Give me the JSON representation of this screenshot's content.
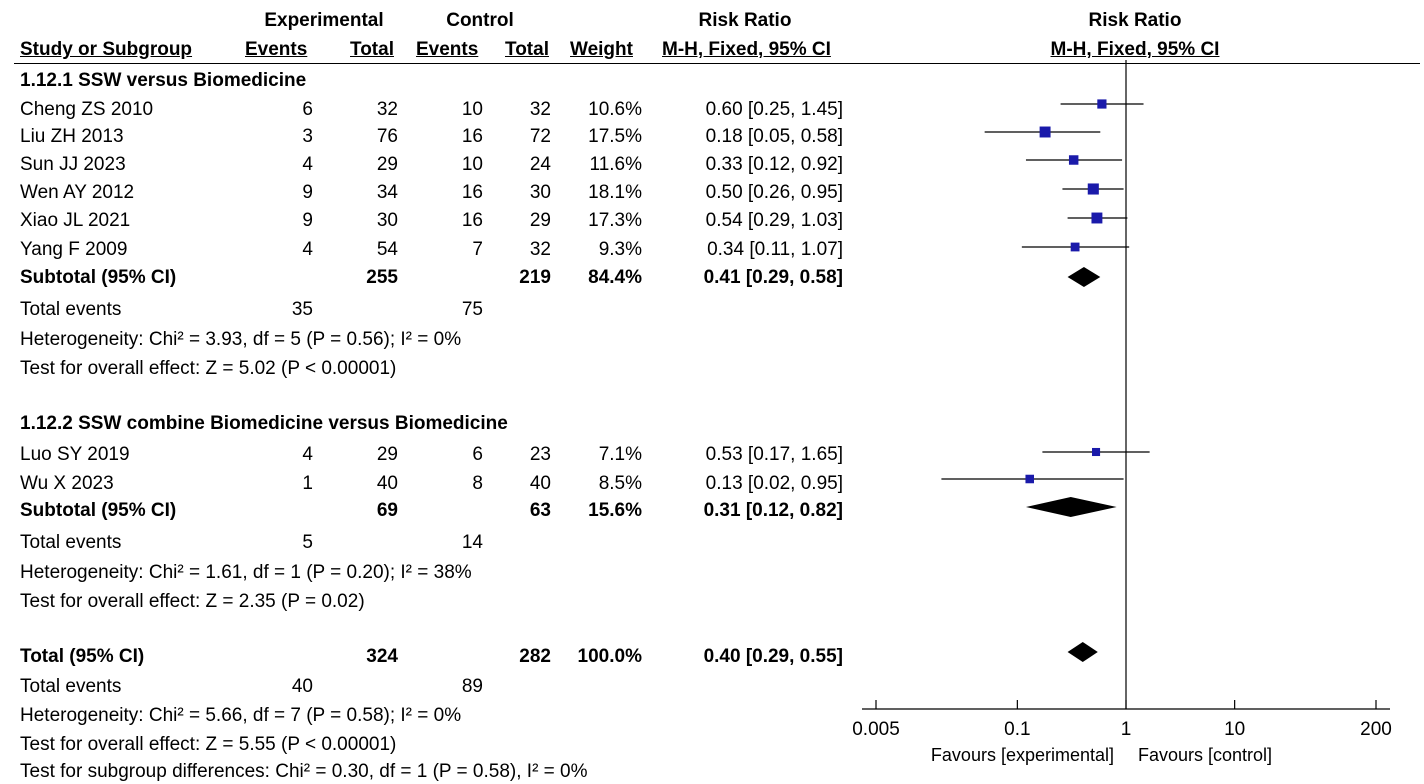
{
  "header": {
    "experimental": "Experimental",
    "control": "Control",
    "risk_ratio": "Risk Ratio",
    "risk_ratio_plot": "Risk Ratio",
    "study_or_subgroup": "Study or Subgroup",
    "events": "Events",
    "total": "Total",
    "events2": "Events",
    "total2": "Total",
    "weight": "Weight",
    "method": "M-H, Fixed, 95% CI",
    "method_plot": "M-H, Fixed, 95% CI"
  },
  "groups": [
    {
      "title": "1.12.1 SSW versus Biomedicine",
      "studies": [
        {
          "name": "Cheng ZS 2010",
          "e_events": "6",
          "e_total": "32",
          "c_events": "10",
          "c_total": "32",
          "weight": "10.6%",
          "ci": "0.60 [0.25, 1.45]"
        },
        {
          "name": "Liu ZH 2013",
          "e_events": "3",
          "e_total": "76",
          "c_events": "16",
          "c_total": "72",
          "weight": "17.5%",
          "ci": "0.18 [0.05, 0.58]"
        },
        {
          "name": "Sun JJ 2023",
          "e_events": "4",
          "e_total": "29",
          "c_events": "10",
          "c_total": "24",
          "weight": "11.6%",
          "ci": "0.33 [0.12, 0.92]"
        },
        {
          "name": "Wen AY 2012",
          "e_events": "9",
          "e_total": "34",
          "c_events": "16",
          "c_total": "30",
          "weight": "18.1%",
          "ci": "0.50 [0.26, 0.95]"
        },
        {
          "name": "Xiao JL 2021",
          "e_events": "9",
          "e_total": "30",
          "c_events": "16",
          "c_total": "29",
          "weight": "17.3%",
          "ci": "0.54 [0.29, 1.03]"
        },
        {
          "name": "Yang F 2009",
          "e_events": "4",
          "e_total": "54",
          "c_events": "7",
          "c_total": "32",
          "weight": "9.3%",
          "ci": "0.34 [0.11, 1.07]"
        }
      ],
      "subtotal": {
        "label": "Subtotal (95% CI)",
        "e_total": "255",
        "c_total": "219",
        "weight": "84.4%",
        "ci": "0.41 [0.29, 0.58]"
      },
      "total_events": {
        "label": "Total events",
        "e": "35",
        "c": "75"
      },
      "heterogeneity": "Heterogeneity: Chi² = 3.93, df = 5 (P = 0.56); I² = 0%",
      "overall": "Test for overall effect: Z = 5.02 (P < 0.00001)"
    },
    {
      "title": "1.12.2 SSW combine Biomedicine versus Biomedicine",
      "studies": [
        {
          "name": "Luo SY 2019",
          "e_events": "4",
          "e_total": "29",
          "c_events": "6",
          "c_total": "23",
          "weight": "7.1%",
          "ci": "0.53 [0.17, 1.65]"
        },
        {
          "name": "Wu X 2023",
          "e_events": "1",
          "e_total": "40",
          "c_events": "8",
          "c_total": "40",
          "weight": "8.5%",
          "ci": "0.13 [0.02, 0.95]"
        }
      ],
      "subtotal": {
        "label": "Subtotal (95% CI)",
        "e_total": "69",
        "c_total": "63",
        "weight": "15.6%",
        "ci": "0.31 [0.12, 0.82]"
      },
      "total_events": {
        "label": "Total events",
        "e": "5",
        "c": "14"
      },
      "heterogeneity": "Heterogeneity: Chi² = 1.61, df = 1 (P = 0.20); I² = 38%",
      "overall": "Test for overall effect: Z = 2.35 (P = 0.02)"
    }
  ],
  "total": {
    "label": "Total (95% CI)",
    "e_total": "324",
    "c_total": "282",
    "weight": "100.0%",
    "ci": "0.40 [0.29, 0.55]"
  },
  "total_events": {
    "label": "Total events",
    "e": "40",
    "c": "89"
  },
  "heterogeneity": "Heterogeneity: Chi² = 5.66, df = 7 (P = 0.58); I² = 0%",
  "overall": "Test for overall effect: Z = 5.55 (P < 0.00001)",
  "subgroup_diff": "Test for subgroup differences: Chi² = 0.30, df = 1 (P = 0.58), I² = 0%",
  "chart_data": {
    "type": "forest",
    "scale": "log",
    "xlim": [
      0.005,
      200
    ],
    "ticks": [
      "0.005",
      "0.1",
      "1",
      "10",
      "200"
    ],
    "tick_values": [
      0.005,
      0.1,
      1,
      10,
      200
    ],
    "null_value": 1,
    "favours_left": "Favours [experimental]",
    "favours_right": "Favours [control]",
    "studies": [
      {
        "name": "Cheng ZS 2010",
        "rr": 0.6,
        "lo": 0.25,
        "hi": 1.45,
        "weight": 10.6
      },
      {
        "name": "Liu ZH 2013",
        "rr": 0.18,
        "lo": 0.05,
        "hi": 0.58,
        "weight": 17.5
      },
      {
        "name": "Sun JJ 2023",
        "rr": 0.33,
        "lo": 0.12,
        "hi": 0.92,
        "weight": 11.6
      },
      {
        "name": "Wen AY 2012",
        "rr": 0.5,
        "lo": 0.26,
        "hi": 0.95,
        "weight": 18.1
      },
      {
        "name": "Xiao JL 2021",
        "rr": 0.54,
        "lo": 0.29,
        "hi": 1.03,
        "weight": 17.3
      },
      {
        "name": "Yang F 2009",
        "rr": 0.34,
        "lo": 0.11,
        "hi": 1.07,
        "weight": 9.3
      },
      {
        "name": "Luo SY 2019",
        "rr": 0.53,
        "lo": 0.17,
        "hi": 1.65,
        "weight": 7.1
      },
      {
        "name": "Wu X 2023",
        "rr": 0.13,
        "lo": 0.02,
        "hi": 0.95,
        "weight": 8.5
      }
    ],
    "diamonds": [
      {
        "name": "Subtotal 1.12.1",
        "rr": 0.41,
        "lo": 0.29,
        "hi": 0.58
      },
      {
        "name": "Subtotal 1.12.2",
        "rr": 0.31,
        "lo": 0.12,
        "hi": 0.82
      },
      {
        "name": "Total",
        "rr": 0.4,
        "lo": 0.29,
        "hi": 0.55
      }
    ],
    "colors": {
      "square": "#1a1aaa",
      "line": "#000000",
      "diamond": "#000000"
    }
  }
}
